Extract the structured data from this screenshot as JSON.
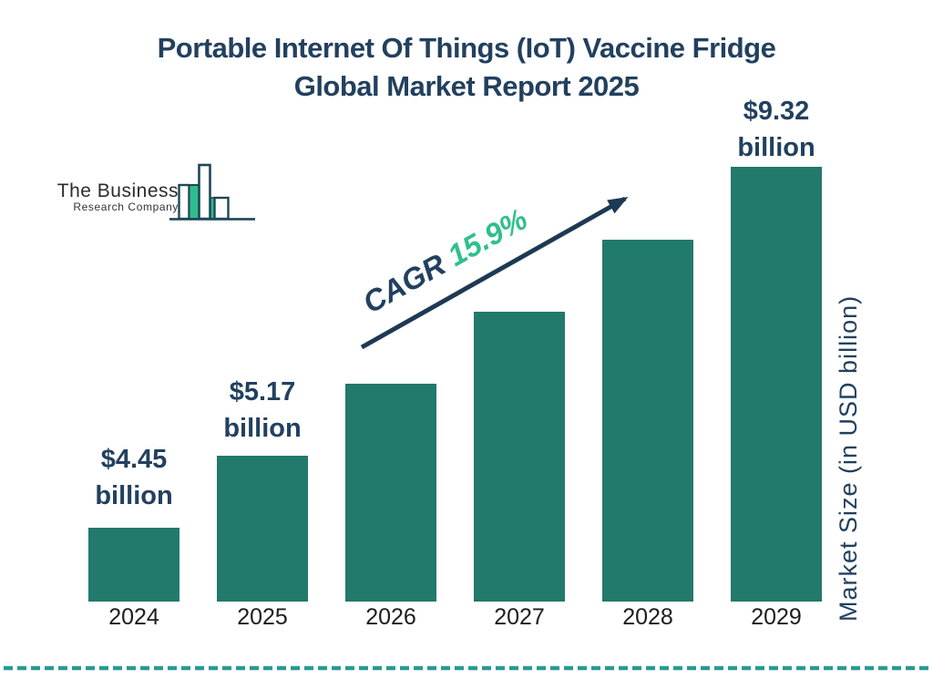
{
  "title": {
    "line1": "Portable Internet Of Things (IoT) Vaccine Fridge",
    "line2": "Global Market Report 2025"
  },
  "logo": {
    "name_line1": "The Business",
    "name_line2": "Research Company"
  },
  "cagr": {
    "prefix": "CAGR ",
    "value": "15.9%"
  },
  "y_axis_label": "Market Size (in USD billion)",
  "colors": {
    "navy": "#22405f",
    "bar_teal": "#217a6b",
    "accent_green": "#2fbf8e",
    "dashed_teal": "#2a9a93",
    "logo_green": "#2dbd8f",
    "logo_outline": "#1e4756"
  },
  "chart_data": {
    "type": "bar",
    "title": "Portable Internet Of Things (IoT) Vaccine Fridge Global Market Report 2025",
    "categories": [
      "2024",
      "2025",
      "2026",
      "2027",
      "2028",
      "2029"
    ],
    "values": [
      4.45,
      5.17,
      5.99,
      6.94,
      8.04,
      9.32
    ],
    "values_note": "2026-2028 not labeled on chart; estimated from stated 15.9% CAGR",
    "labeled_values": {
      "2024": 4.45,
      "2025": 5.17,
      "2029": 9.32
    },
    "unit": "USD billion",
    "xlabel": "",
    "ylabel": "Market Size (in USD billion)",
    "cagr_percent": 15.9,
    "bar_color": "#217a6b",
    "grid": false,
    "legend": false,
    "bar_value_labels": [
      {
        "index": 0,
        "amount": "$4.45",
        "unit": "billion"
      },
      {
        "index": 1,
        "amount": "$5.17",
        "unit": "billion"
      },
      {
        "index": 5,
        "amount": "$9.32",
        "unit": "billion"
      }
    ]
  }
}
